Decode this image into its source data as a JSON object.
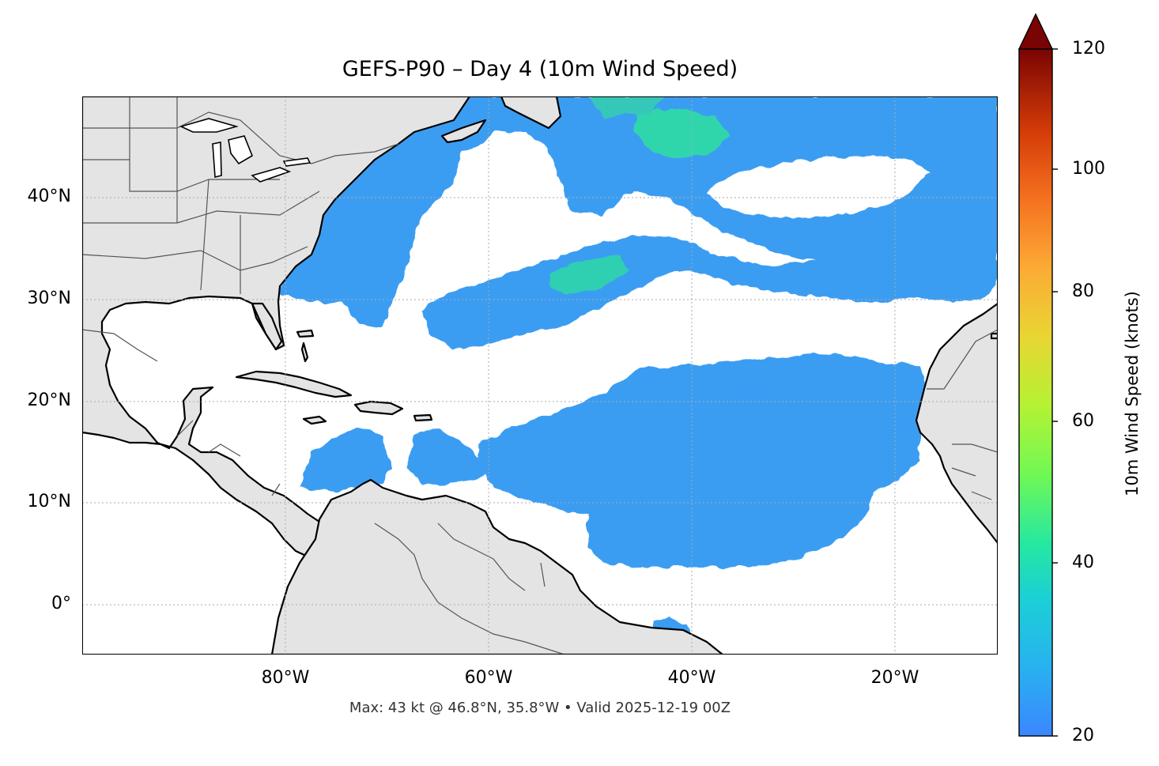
{
  "title": "GEFS-P90 – Day 4 (10m Wind Speed)",
  "footer": "Max: 43 kt @ 46.8°N, 35.8°W • Valid 2025-12-19 00Z",
  "map": {
    "lat_ticks": [
      "40°N",
      "30°N",
      "20°N",
      "10°N",
      "0°"
    ],
    "lon_ticks": [
      "80°W",
      "60°W",
      "40°W",
      "20°W"
    ],
    "land_color": "#e4e4e4",
    "coast_color": "#000000",
    "border_color": "#555555"
  },
  "colorbar": {
    "label": "10m Wind Speed (knots)",
    "ticks": [
      "20",
      "40",
      "60",
      "80",
      "100",
      "120"
    ],
    "min": 20,
    "max": 120,
    "extend": "max",
    "colormap": "turbo"
  }
}
